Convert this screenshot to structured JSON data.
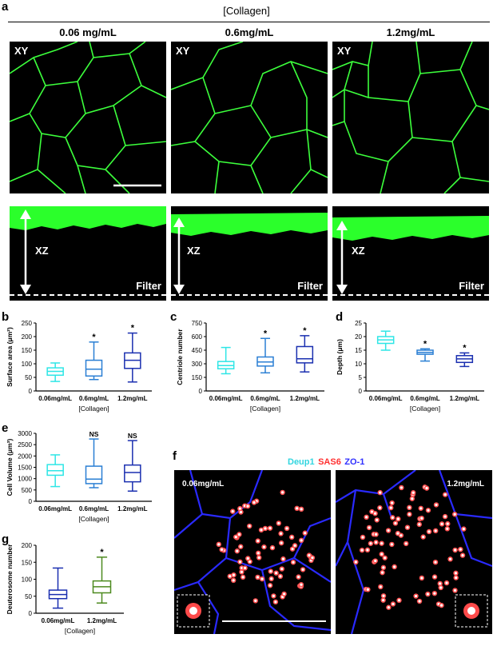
{
  "figure": {
    "panel_a": {
      "letter": "a",
      "header": "[Collagen]",
      "columns": [
        "0.06 mg/mL",
        "0.6mg/mL",
        "1.2mg/mL"
      ],
      "xy_label": "XY",
      "xz_label": "XZ",
      "filter_label": "Filter"
    },
    "panel_b_letter": "b",
    "panel_c_letter": "c",
    "panel_d_letter": "d",
    "panel_e_letter": "e",
    "panel_f": {
      "letter": "f",
      "legend": [
        "Deup1",
        "SAS6",
        "ZO-1"
      ],
      "left_label": "0.06mg/mL",
      "right_label": "1.2mg/mL"
    },
    "panel_g_letter": "g"
  },
  "colors": {
    "cyan": "#2ee6e6",
    "mid_blue": "#2a7fd4",
    "dark_blue": "#1a2fb0",
    "green_box": "#4d8a1f",
    "micro_green": "#3cff3c",
    "f_cyan": "#33d6e0",
    "f_red": "#ff3030",
    "f_blue": "#3030ff"
  },
  "chart_data": [
    {
      "panel": "b",
      "type": "box",
      "ylabel": "Surface area (μm²)",
      "xlabel": "[Collagen]",
      "ylim": [
        0,
        250
      ],
      "yticks": [
        0,
        50,
        100,
        150,
        200,
        250
      ],
      "categories": [
        "0.06mg/mL",
        "0.6mg/mL",
        "1.2mg/mL"
      ],
      "boxes": [
        {
          "min": 35,
          "q1": 58,
          "median": 72,
          "q3": 85,
          "max": 103,
          "color": "#2ee6e6",
          "mark": ""
        },
        {
          "min": 42,
          "q1": 55,
          "median": 80,
          "q3": 113,
          "max": 180,
          "color": "#2a7fd4",
          "mark": "*"
        },
        {
          "min": 33,
          "q1": 83,
          "median": 113,
          "q3": 140,
          "max": 213,
          "color": "#1a2fb0",
          "mark": "*"
        }
      ]
    },
    {
      "panel": "c",
      "type": "box",
      "ylabel": "Centriole number",
      "xlabel": "[Collagen]",
      "ylim": [
        0,
        750
      ],
      "yticks": [
        0,
        150,
        300,
        450,
        600,
        750
      ],
      "categories": [
        "0.06mg/mL",
        "0.6mg/mL",
        "1.2mg/mL"
      ],
      "boxes": [
        {
          "min": 190,
          "q1": 245,
          "median": 280,
          "q3": 325,
          "max": 480,
          "color": "#2ee6e6",
          "mark": ""
        },
        {
          "min": 200,
          "q1": 275,
          "median": 320,
          "q3": 375,
          "max": 580,
          "color": "#2a7fd4",
          "mark": "*"
        },
        {
          "min": 210,
          "q1": 310,
          "median": 355,
          "q3": 490,
          "max": 610,
          "color": "#1a2fb0",
          "mark": "*"
        }
      ]
    },
    {
      "panel": "d",
      "type": "box",
      "ylabel": "Depth (μm)",
      "xlabel": "[Collagen]",
      "ylim": [
        0,
        25
      ],
      "yticks": [
        0,
        5,
        10,
        15,
        20,
        25
      ],
      "categories": [
        "0.06mg/mL",
        "0.6mg/mL",
        "1.2mg/mL"
      ],
      "boxes": [
        {
          "min": 15,
          "q1": 17.5,
          "median": 18.8,
          "q3": 20,
          "max": 22,
          "color": "#2ee6e6",
          "mark": ""
        },
        {
          "min": 11,
          "q1": 13.5,
          "median": 14.2,
          "q3": 15,
          "max": 15.5,
          "color": "#2a7fd4",
          "mark": "*"
        },
        {
          "min": 9,
          "q1": 10.5,
          "median": 11.8,
          "q3": 13,
          "max": 14,
          "color": "#1a2fb0",
          "mark": "*"
        }
      ]
    },
    {
      "panel": "e",
      "type": "box",
      "ylabel": "Cell Volume (μm³)",
      "xlabel": "[Collagen]",
      "ylim": [
        0,
        3000
      ],
      "yticks": [
        0,
        500,
        1000,
        1500,
        2000,
        2500,
        3000
      ],
      "categories": [
        "0.06mg/mL",
        "0.6mg/mL",
        "1.2mg/mL"
      ],
      "boxes": [
        {
          "min": 650,
          "q1": 1150,
          "median": 1350,
          "q3": 1620,
          "max": 2050,
          "color": "#2ee6e6",
          "mark": ""
        },
        {
          "min": 600,
          "q1": 780,
          "median": 980,
          "q3": 1550,
          "max": 2750,
          "color": "#2a7fd4",
          "mark": "NS"
        },
        {
          "min": 450,
          "q1": 860,
          "median": 1270,
          "q3": 1600,
          "max": 2680,
          "color": "#1a2fb0",
          "mark": "NS"
        }
      ]
    },
    {
      "panel": "g",
      "type": "box",
      "ylabel": "Deuterosome number",
      "xlabel": "[Collagen]",
      "ylim": [
        0,
        200
      ],
      "yticks": [
        0,
        50,
        100,
        150,
        200
      ],
      "categories": [
        "0.06mg/mL",
        "1.2mg/mL"
      ],
      "boxes": [
        {
          "min": 15,
          "q1": 43,
          "median": 55,
          "q3": 68,
          "max": 133,
          "color": "#1a2fb0",
          "mark": ""
        },
        {
          "min": 30,
          "q1": 60,
          "median": 78,
          "q3": 95,
          "max": 165,
          "color": "#4d8a1f",
          "mark": "*"
        }
      ]
    }
  ]
}
